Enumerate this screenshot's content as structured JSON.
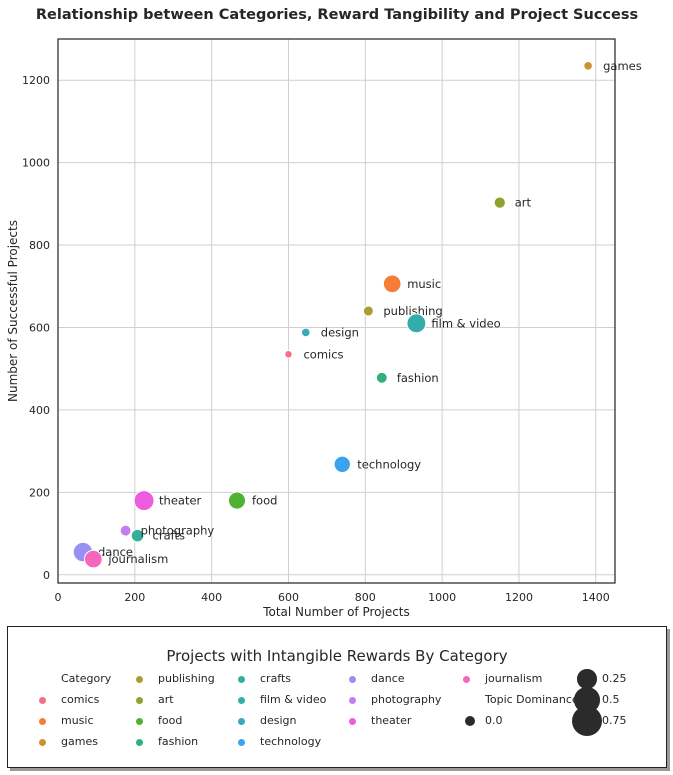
{
  "chart_data": {
    "type": "scatter",
    "title": "Relationship between Categories, Reward Tangibility and Project Success",
    "xlabel": "Total Number of Projects",
    "ylabel": "Number of Successful Projects",
    "xlim": [
      0,
      1450
    ],
    "ylim": [
      -20,
      1300
    ],
    "xticks": [
      0,
      200,
      400,
      600,
      800,
      1000,
      1200,
      1400
    ],
    "yticks": [
      0,
      200,
      400,
      600,
      800,
      1000,
      1200
    ],
    "grid": true,
    "size_legend_title": "Topic Dominance",
    "series": [
      {
        "name": "comics",
        "x": 600,
        "y": 535,
        "size": 0.02,
        "color": "#f37088"
      },
      {
        "name": "music",
        "x": 870,
        "y": 706,
        "size": 0.6,
        "color": "#f57d37"
      },
      {
        "name": "games",
        "x": 1380,
        "y": 1235,
        "size": 0.06,
        "color": "#cc922f"
      },
      {
        "name": "publishing",
        "x": 808,
        "y": 640,
        "size": 0.12,
        "color": "#ab9d2f"
      },
      {
        "name": "art",
        "x": 1150,
        "y": 903,
        "size": 0.18,
        "color": "#8ea32f"
      },
      {
        "name": "food",
        "x": 466,
        "y": 180,
        "size": 0.55,
        "color": "#4fb232"
      },
      {
        "name": "fashion",
        "x": 843,
        "y": 478,
        "size": 0.16,
        "color": "#31b07a"
      },
      {
        "name": "crafts",
        "x": 207,
        "y": 95,
        "size": 0.25,
        "color": "#32b09a"
      },
      {
        "name": "film & video",
        "x": 933,
        "y": 610,
        "size": 0.7,
        "color": "#34ada8"
      },
      {
        "name": "design",
        "x": 645,
        "y": 588,
        "size": 0.06,
        "color": "#37aab8"
      },
      {
        "name": "technology",
        "x": 740,
        "y": 268,
        "size": 0.5,
        "color": "#3ba3ec"
      },
      {
        "name": "dance",
        "x": 65,
        "y": 55,
        "size": 0.75,
        "color": "#9a8ff2"
      },
      {
        "name": "photography",
        "x": 176,
        "y": 107,
        "size": 0.16,
        "color": "#c37df2"
      },
      {
        "name": "theater",
        "x": 224,
        "y": 180,
        "size": 0.8,
        "color": "#ec5ce0"
      },
      {
        "name": "journalism",
        "x": 92,
        "y": 38,
        "size": 0.6,
        "color": "#f566bd"
      }
    ],
    "legend": {
      "title": "Projects with Intangible Rewards By Category",
      "category_header": "Category",
      "columns": [
        [
          "Category",
          "comics",
          "music",
          "games"
        ],
        [
          "publishing",
          "art",
          "food",
          "fashion"
        ],
        [
          "crafts",
          "film & video",
          "design",
          "technology"
        ],
        [
          "dance",
          "photography",
          "theater"
        ],
        [
          "journalism",
          "Topic Dominance",
          "0.0"
        ],
        [
          "0.25",
          "0.5",
          "0.75"
        ]
      ],
      "size_entries": [
        {
          "label": "0.0",
          "size": 0.0
        },
        {
          "label": "0.25",
          "size": 0.25
        },
        {
          "label": "0.5",
          "size": 0.5
        },
        {
          "label": "0.75",
          "size": 0.75
        }
      ],
      "placement": "bottom"
    }
  }
}
